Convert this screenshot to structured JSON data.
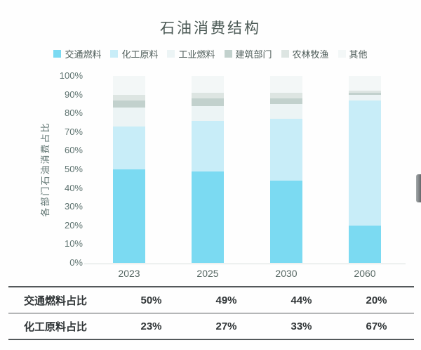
{
  "title": "石油消费结构",
  "colors": {
    "background": "#fefefe",
    "title_text": "#4b5955",
    "axis_text": "#5e7370",
    "table_text": "#2f3436",
    "table_border": "#54595b",
    "axis_line": "#d9dfde"
  },
  "chart_data": {
    "type": "bar",
    "stacked": true,
    "title": "石油消费结构",
    "ylabel": "各部门石油消费占比",
    "unit": "%",
    "ylim": [
      0,
      100
    ],
    "grid": false,
    "legend_position": "top",
    "categories": [
      "2023",
      "2025",
      "2030",
      "2060"
    ],
    "yticks": [
      "0%",
      "10%",
      "20%",
      "30%",
      "40%",
      "50%",
      "60%",
      "70%",
      "80%",
      "90%",
      "100%"
    ],
    "series": [
      {
        "key": "transport-fuel",
        "name": "交通燃料",
        "color": "#7bdaf2",
        "values": [
          50,
          49,
          44,
          20
        ]
      },
      {
        "key": "chemical-feedstock",
        "name": "化工原料",
        "color": "#c8edf8",
        "values": [
          23,
          27,
          33,
          67
        ]
      },
      {
        "key": "industrial-fuel",
        "name": "工业燃料",
        "color": "#ecf4f5",
        "values": [
          10,
          8,
          8,
          3
        ]
      },
      {
        "key": "building-sector",
        "name": "建筑部门",
        "color": "#c2d1cd",
        "values": [
          4,
          4,
          3,
          1
        ]
      },
      {
        "key": "agri-forestry-fishery",
        "name": "农林牧渔",
        "color": "#dde5e2",
        "values": [
          3,
          3,
          3,
          1
        ]
      },
      {
        "key": "other",
        "name": "其他",
        "color": "#f3f7f7",
        "values": [
          10,
          9,
          9,
          8
        ]
      }
    ]
  },
  "table": {
    "rows": [
      {
        "key": "transport-fuel-share",
        "label": "交通燃料占比",
        "values": [
          "50%",
          "49%",
          "44%",
          "20%"
        ]
      },
      {
        "key": "chemical-feedstock-share",
        "label": "化工原料占比",
        "values": [
          "23%",
          "27%",
          "33%",
          "67%"
        ]
      }
    ]
  }
}
